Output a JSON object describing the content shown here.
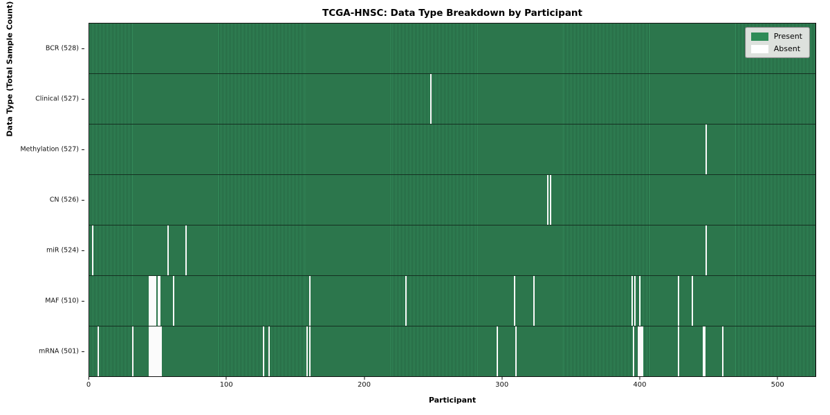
{
  "title": "TCGA-HNSC: Data Type Breakdown by Participant",
  "axes": {
    "x_label": "Participant",
    "y_label": "Data Type (Total Sample Count)"
  },
  "legend": {
    "items": [
      {
        "label": "Present",
        "color": "#2e8b57"
      },
      {
        "label": "Absent",
        "color": "#ffffff"
      }
    ],
    "position": "upper right"
  },
  "colors": {
    "present_green": "#2e8b57",
    "present_edge_dark": "#205a3a",
    "absent_white": "#fbfbfb",
    "legend_background": "#dde1dd",
    "plot_border": "#111111"
  },
  "chart_data": {
    "type": "heatmap",
    "title": "TCGA-HNSC: Data Type Breakdown by Participant",
    "xlabel": "Participant",
    "ylabel": "Data Type (Total Sample Count)",
    "x_range": [
      0,
      528
    ],
    "x_ticks": [
      0,
      100,
      200,
      300,
      400,
      500
    ],
    "total_participants": 528,
    "legend_entries": [
      "Present",
      "Absent"
    ],
    "legend_position": "upper right",
    "grid": false,
    "rows": [
      {
        "name": "BCR",
        "label": "BCR (528)",
        "present_count": 528,
        "absent_count": 0,
        "absent_participants": []
      },
      {
        "name": "Clinical",
        "label": "Clinical (527)",
        "present_count": 527,
        "absent_count": 1,
        "absent_participants": [
          248
        ]
      },
      {
        "name": "Methylation",
        "label": "Methylation (527)",
        "present_count": 527,
        "absent_count": 1,
        "absent_participants": [
          448
        ]
      },
      {
        "name": "CN",
        "label": "CN (526)",
        "present_count": 526,
        "absent_count": 2,
        "absent_participants": [
          333,
          335
        ]
      },
      {
        "name": "miR",
        "label": "miR (524)",
        "present_count": 524,
        "absent_count": 4,
        "absent_participants": [
          2,
          57,
          70,
          448
        ]
      },
      {
        "name": "MAF",
        "label": "MAF (510)",
        "present_count": 510,
        "absent_count": 18,
        "absent_participants": [
          43,
          44,
          45,
          46,
          47,
          48,
          50,
          51,
          61,
          160,
          230,
          309,
          323,
          394,
          396,
          400,
          428,
          438
        ]
      },
      {
        "name": "mRNA",
        "label": "mRNA (501)",
        "present_count": 501,
        "absent_count": 27,
        "absent_participants": [
          6,
          31,
          43,
          44,
          45,
          46,
          47,
          48,
          49,
          50,
          51,
          52,
          126,
          130,
          158,
          160,
          296,
          310,
          395,
          399,
          400,
          401,
          402,
          428,
          446,
          447,
          460
        ]
      }
    ]
  }
}
